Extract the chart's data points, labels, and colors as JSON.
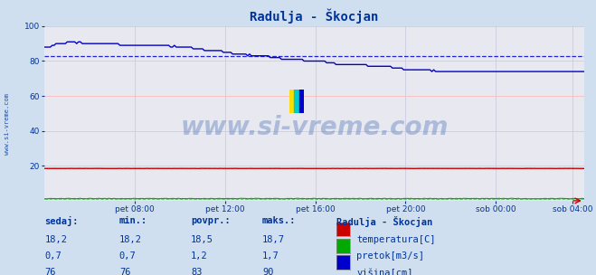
{
  "title": "Radulja - Škocjan",
  "bg_color": "#d0dff0",
  "plot_bg_color": "#e8e8f0",
  "grid_color_h": "#ffbbbb",
  "grid_color_v": "#ccccdd",
  "ylim": [
    0,
    100
  ],
  "xtick_labels": [
    "pet 08:00",
    "pet 12:00",
    "pet 16:00",
    "pet 20:00",
    "sob 00:00",
    "sob 04:00"
  ],
  "xtick_positions": [
    48,
    96,
    144,
    192,
    240,
    281
  ],
  "temp_color": "#cc0000",
  "pretok_color": "#00aa00",
  "visina_color": "#0000cc",
  "visina_avg": 83,
  "temp_avg": 18.5,
  "pretok_avg": 1.2,
  "watermark": "www.si-vreme.com",
  "watermark_color": "#2255aa",
  "sidebar_text": "www.si-vreme.com",
  "table_headers": [
    "sedaj:",
    "min.:",
    "povpr.:",
    "maks.:"
  ],
  "table_row1": [
    "18,2",
    "18,2",
    "18,5",
    "18,7"
  ],
  "table_row2": [
    "0,7",
    "0,7",
    "1,2",
    "1,7"
  ],
  "table_row3": [
    "76",
    "76",
    "83",
    "90"
  ],
  "legend_title": "Radulja - Škocjan",
  "legend_labels": [
    "temperatura[C]",
    "pretok[m3/s]",
    "višina[cm]"
  ],
  "legend_colors": [
    "#cc0000",
    "#00aa00",
    "#0000cc"
  ],
  "text_color": "#003399",
  "n_points": 288
}
